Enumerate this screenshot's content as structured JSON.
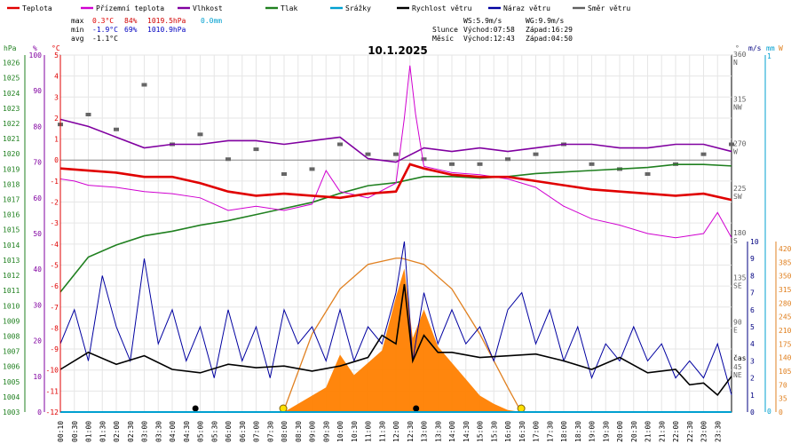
{
  "chart_data": {
    "type": "line",
    "title": "10.1.2025",
    "legend": [
      {
        "label": "Teplota",
        "color": "#e00000"
      },
      {
        "label": "Přízemní teplota",
        "color": "#d000d0"
      },
      {
        "label": "Vlhkost",
        "color": "#8000a0"
      },
      {
        "label": "Tlak",
        "color": "#208020"
      },
      {
        "label": "Srážky",
        "color": "#00a0d0"
      },
      {
        "label": "Rychlost větru",
        "color": "#000000"
      },
      {
        "label": "Náraz větru",
        "color": "#0000a0"
      },
      {
        "label": "Směr větru",
        "color": "#606060"
      }
    ],
    "stats": {
      "max_label": "max",
      "max_temp": "0.3°C",
      "max_hum": "84%",
      "max_press": "1019.5hPa",
      "max_rain": "0.0mm",
      "min_label": "min",
      "min_temp": "-1.9°C",
      "min_hum": "69%",
      "min_press": "1010.9hPa",
      "avg_label": "avg",
      "avg_temp": "-1.1°C"
    },
    "info": {
      "ws": "WS:5.9m/s",
      "wg": "WG:9.9m/s",
      "slunce": "Slunce",
      "sun_rise": "Východ:07:58",
      "sun_set": "Západ:16:29",
      "mesic": "Měsíc",
      "moon_rise": "Východ:12:43",
      "moon_set": "Západ:04:50"
    },
    "axes": {
      "hpa_unit": "hPa",
      "hum_unit": "%",
      "temp_unit": "°C",
      "dir_unit": "°",
      "wind_unit": "m/s",
      "rain_unit": "mm",
      "solar_unit": "W",
      "x_label": "čas",
      "hpa_ticks": [
        "1026",
        "1025",
        "1024",
        "1023",
        "1022",
        "1021",
        "1020",
        "1019",
        "1018",
        "1017",
        "1016",
        "1015",
        "1014",
        "1013",
        "1012",
        "1011",
        "1010",
        "1009",
        "1008",
        "1007",
        "1006",
        "1005",
        "1004",
        "1003"
      ],
      "hum_ticks": [
        "100",
        "90",
        "80",
        "70",
        "60",
        "50",
        "40",
        "30",
        "20",
        "10",
        "0"
      ],
      "temp_ticks": [
        "5",
        "4",
        "3",
        "2",
        "1",
        "0",
        "-1",
        "-2",
        "-3",
        "-4",
        "-5",
        "-6",
        "-7",
        "-8",
        "-9",
        "-10",
        "-11",
        "-12"
      ],
      "dir_ticks": [
        {
          "deg": "360",
          "lab": "N"
        },
        {
          "deg": "315",
          "lab": "NW"
        },
        {
          "deg": "270",
          "lab": "W"
        },
        {
          "deg": "225",
          "lab": "SW"
        },
        {
          "deg": "180",
          "lab": "S"
        },
        {
          "deg": "135",
          "lab": "SE"
        },
        {
          "deg": "90",
          "lab": "E"
        },
        {
          "deg": "45",
          "lab": "NE"
        }
      ],
      "wind_ticks": [
        "10",
        "9",
        "8",
        "7",
        "6",
        "5",
        "4",
        "3",
        "2",
        "1",
        "0"
      ],
      "rain_ticks": [
        "1",
        "0"
      ],
      "solar_ticks": [
        "420",
        "385",
        "350",
        "315",
        "280",
        "245",
        "210",
        "175",
        "140",
        "105",
        "70",
        "35",
        "0"
      ],
      "time_ticks": [
        "00:10",
        "00:30",
        "01:00",
        "01:30",
        "02:00",
        "02:30",
        "03:00",
        "03:30",
        "04:00",
        "04:30",
        "05:00",
        "05:30",
        "06:00",
        "06:30",
        "07:00",
        "07:30",
        "08:00",
        "08:30",
        "09:00",
        "09:30",
        "10:00",
        "10:30",
        "11:00",
        "11:30",
        "12:00",
        "12:30",
        "13:00",
        "13:30",
        "14:00",
        "14:30",
        "15:00",
        "15:30",
        "16:00",
        "16:30",
        "17:00",
        "17:30",
        "18:00",
        "18:30",
        "19:00",
        "19:30",
        "20:00",
        "20:30",
        "21:00",
        "21:30",
        "22:00",
        "22:30",
        "23:00",
        "23:30"
      ]
    },
    "temp_range": [
      -12,
      5
    ],
    "hum_range": [
      0,
      100
    ],
    "press_range": [
      1003,
      1026.5
    ],
    "wind_range": [
      0,
      10
    ],
    "solar_range": [
      0,
      420
    ],
    "dir_range": [
      0,
      360
    ],
    "temperature": {
      "x": [
        0,
        1,
        2,
        3,
        4,
        5,
        6,
        7,
        8,
        9,
        10,
        11,
        12,
        12.5,
        13,
        14,
        15,
        16,
        17,
        18,
        19,
        20,
        21,
        22,
        23,
        24
      ],
      "y": [
        -0.4,
        -0.5,
        -0.6,
        -0.8,
        -0.8,
        -1.1,
        -1.5,
        -1.7,
        -1.6,
        -1.7,
        -1.8,
        -1.6,
        -1.5,
        -0.2,
        -0.4,
        -0.7,
        -0.8,
        -0.8,
        -1.0,
        -1.2,
        -1.4,
        -1.5,
        -1.6,
        -1.7,
        -1.6,
        -1.9
      ]
    },
    "ground_temperature": {
      "x": [
        0,
        0.5,
        1,
        2,
        3,
        4,
        5,
        6,
        7,
        8,
        9,
        9.5,
        10,
        11,
        12,
        12.3,
        12.5,
        12.7,
        13,
        14,
        15,
        16,
        17,
        18,
        19,
        20,
        21,
        22,
        23,
        23.5,
        24
      ],
      "y": [
        -0.9,
        -1.0,
        -1.2,
        -1.3,
        -1.5,
        -1.6,
        -1.8,
        -2.4,
        -2.2,
        -2.4,
        -2.1,
        -0.5,
        -1.5,
        -1.8,
        -1.1,
        2.0,
        4.5,
        2.2,
        -0.3,
        -0.6,
        -0.7,
        -0.9,
        -1.3,
        -2.2,
        -2.8,
        -3.1,
        -3.5,
        -3.7,
        -3.5,
        -2.5,
        -3.7
      ]
    },
    "humidity": {
      "x": [
        0,
        1,
        2,
        3,
        4,
        5,
        6,
        7,
        8,
        9,
        10,
        11,
        12,
        13,
        14,
        15,
        16,
        17,
        18,
        19,
        20,
        21,
        22,
        23,
        24
      ],
      "y": [
        82,
        80,
        77,
        74,
        75,
        75,
        76,
        76,
        75,
        76,
        77,
        71,
        70,
        74,
        73,
        74,
        73,
        74,
        75,
        75,
        74,
        74,
        75,
        75,
        73
      ]
    },
    "pressure": {
      "x": [
        0,
        1,
        2,
        3,
        4,
        5,
        6,
        7,
        8,
        9,
        10,
        11,
        12,
        13,
        14,
        15,
        16,
        17,
        18,
        19,
        20,
        21,
        22,
        23,
        24
      ],
      "y": [
        1010.9,
        1013.2,
        1014.0,
        1014.6,
        1014.9,
        1015.3,
        1015.6,
        1016.0,
        1016.4,
        1016.8,
        1017.4,
        1017.9,
        1018.1,
        1018.5,
        1018.5,
        1018.4,
        1018.5,
        1018.7,
        1018.8,
        1018.9,
        1019.0,
        1019.1,
        1019.3,
        1019.3,
        1019.2
      ]
    },
    "wind_speed": {
      "x": [
        0,
        1,
        2,
        3,
        4,
        5,
        6,
        7,
        8,
        9,
        10,
        11,
        11.5,
        12,
        12.3,
        12.6,
        13,
        13.5,
        14,
        15,
        16,
        17,
        18,
        19,
        20,
        21,
        22,
        22.5,
        23,
        23.5,
        24
      ],
      "y": [
        2.5,
        3.5,
        2.8,
        3.3,
        2.5,
        2.3,
        2.8,
        2.6,
        2.7,
        2.4,
        2.7,
        3.2,
        4.5,
        4.0,
        7.5,
        3.0,
        4.5,
        3.5,
        3.5,
        3.2,
        3.3,
        3.4,
        3.0,
        2.5,
        3.2,
        2.3,
        2.5,
        1.6,
        1.7,
        1.0,
        2.1
      ]
    },
    "wind_gust": {
      "x": [
        0,
        0.5,
        1,
        1.5,
        2,
        2.5,
        3,
        3.5,
        4,
        4.5,
        5,
        5.5,
        6,
        6.5,
        7,
        7.5,
        8,
        8.5,
        9,
        9.5,
        10,
        10.5,
        11,
        11.5,
        12,
        12.3,
        12.6,
        13,
        13.5,
        14,
        14.5,
        15,
        15.5,
        16,
        16.5,
        17,
        17.5,
        18,
        18.5,
        19,
        19.5,
        20,
        20.5,
        21,
        21.5,
        22,
        22.5,
        23,
        23.5,
        24
      ],
      "y": [
        4,
        6,
        3,
        8,
        5,
        3,
        9,
        4,
        6,
        3,
        5,
        2,
        6,
        3,
        5,
        2,
        6,
        4,
        5,
        3,
        6,
        3,
        5,
        4,
        7,
        10,
        3,
        7,
        4,
        6,
        4,
        5,
        3,
        6,
        7,
        4,
        6,
        3,
        5,
        2,
        4,
        3,
        5,
        3,
        4,
        2,
        3,
        2,
        4,
        1
      ]
    },
    "wind_direction": {
      "x": [
        0,
        1,
        2,
        3,
        4,
        5,
        6,
        7,
        8,
        9,
        10,
        11,
        12,
        13,
        14,
        15,
        16,
        17,
        18,
        19,
        20,
        21,
        22,
        23,
        24
      ],
      "y": [
        290,
        300,
        285,
        330,
        270,
        280,
        255,
        265,
        240,
        245,
        270,
        260,
        260,
        255,
        250,
        250,
        255,
        260,
        270,
        250,
        245,
        240,
        250,
        260,
        270
      ]
    },
    "solar": {
      "x": [
        8,
        8.5,
        9,
        9.5,
        10,
        10.5,
        11,
        11.5,
        12,
        12.3,
        12.6,
        13,
        13.5,
        14,
        14.5,
        15,
        15.5,
        16,
        16.5
      ],
      "y": [
        0,
        20,
        40,
        60,
        140,
        90,
        120,
        150,
        280,
        350,
        180,
        250,
        160,
        120,
        80,
        40,
        20,
        5,
        0
      ]
    },
    "solar_max": {
      "x": [
        7.97,
        9,
        10,
        11,
        12,
        12.2,
        13,
        14,
        15,
        16,
        16.48
      ],
      "y": [
        0,
        190,
        300,
        360,
        375,
        375,
        360,
        300,
        190,
        60,
        0
      ]
    }
  }
}
